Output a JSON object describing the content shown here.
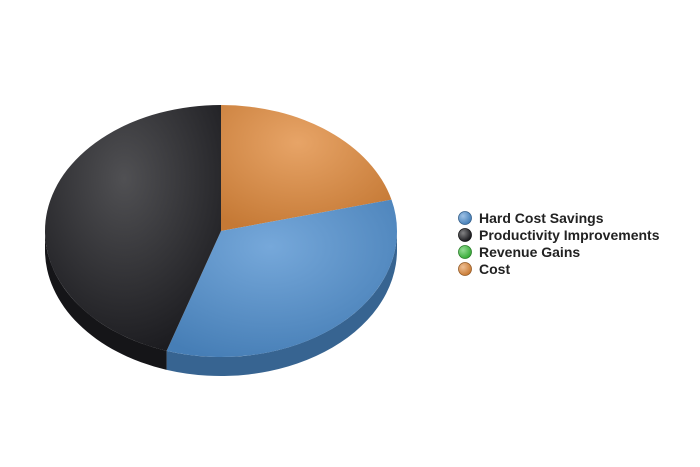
{
  "chart_data": {
    "type": "pie",
    "style": "3d",
    "legend_position": "right",
    "categories": [
      "Hard Cost Savings",
      "Productivity Improvements",
      "Revenue Gains",
      "Cost"
    ],
    "values": [
      34,
      45,
      0,
      21
    ],
    "colors": {
      "Hard Cost Savings": "#4f8fcf",
      "Productivity Improvements": "#1e1e22",
      "Revenue Gains": "#3fbf3f",
      "Cost": "#e08a3c"
    }
  }
}
